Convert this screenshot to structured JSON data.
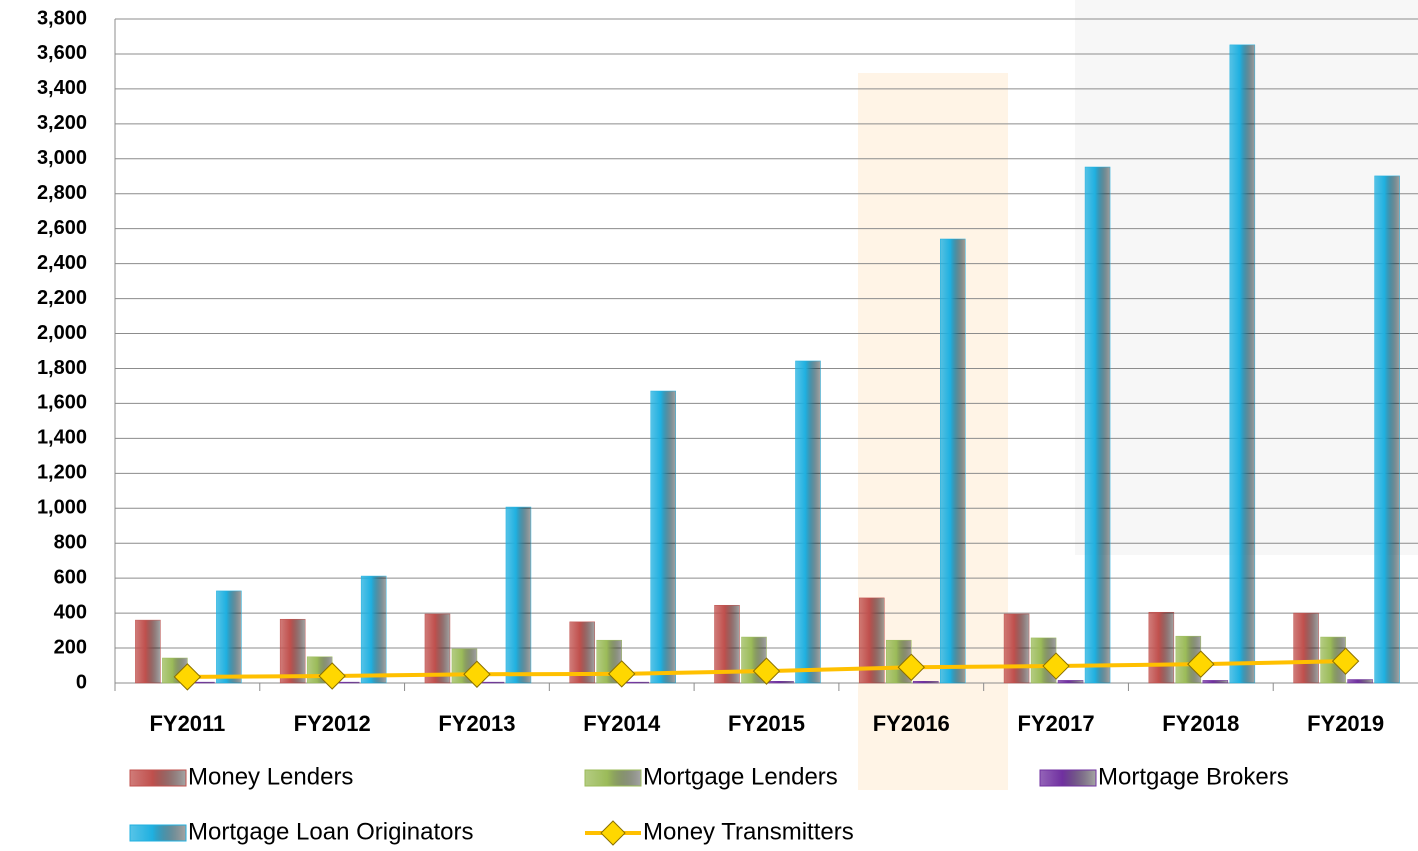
{
  "chart_data": {
    "type": "bar",
    "categories": [
      "FY2011",
      "FY2012",
      "FY2013",
      "FY2014",
      "FY2015",
      "FY2016",
      "FY2017",
      "FY2018",
      "FY2019"
    ],
    "series": [
      {
        "name": "Money Lenders",
        "color": "#c0504d",
        "values": [
          360,
          365,
          395,
          350,
          445,
          487,
          395,
          405,
          400
        ]
      },
      {
        "name": "Mortgage Lenders",
        "color": "#9bbb59",
        "values": [
          143,
          150,
          195,
          245,
          263,
          245,
          258,
          268,
          263
        ]
      },
      {
        "name": "Mortgage Brokers",
        "color": "#7030a0",
        "values": [
          5,
          5,
          5,
          5,
          10,
          10,
          15,
          15,
          20
        ]
      },
      {
        "name": "Mortgage Loan Originators",
        "color": "#1fb0e0",
        "values": [
          527,
          612,
          1007,
          1671,
          1843,
          2541,
          2953,
          3652,
          2902
        ]
      },
      {
        "name": "Money Transmitters",
        "color": "#ffc000",
        "type": "line",
        "values": [
          35,
          40,
          50,
          52,
          68,
          90,
          97,
          108,
          125
        ]
      }
    ],
    "ylim": [
      0,
      3800
    ],
    "yticks": [
      0,
      200,
      400,
      600,
      800,
      {
        "value": 1000,
        "label": "1,000"
      },
      {
        "value": 1200,
        "label": "1,200"
      },
      {
        "value": 1400,
        "label": "1,400"
      },
      {
        "value": 1600,
        "label": "1,600"
      },
      {
        "value": 1800,
        "label": "1,800"
      },
      {
        "value": 2000,
        "label": "2,000"
      },
      {
        "value": 2200,
        "label": "2,200"
      },
      {
        "value": 2400,
        "label": "2,400"
      },
      {
        "value": 2600,
        "label": "2,600"
      },
      {
        "value": 2800,
        "label": "2,800"
      },
      {
        "value": 3000,
        "label": "3,000"
      },
      {
        "value": 3200,
        "label": "3,200"
      },
      {
        "value": 3400,
        "label": "3,400"
      },
      {
        "value": 3600,
        "label": "3,600"
      },
      {
        "value": 3800,
        "label": "3,800"
      }
    ],
    "grid": true,
    "legend": "bottom"
  }
}
